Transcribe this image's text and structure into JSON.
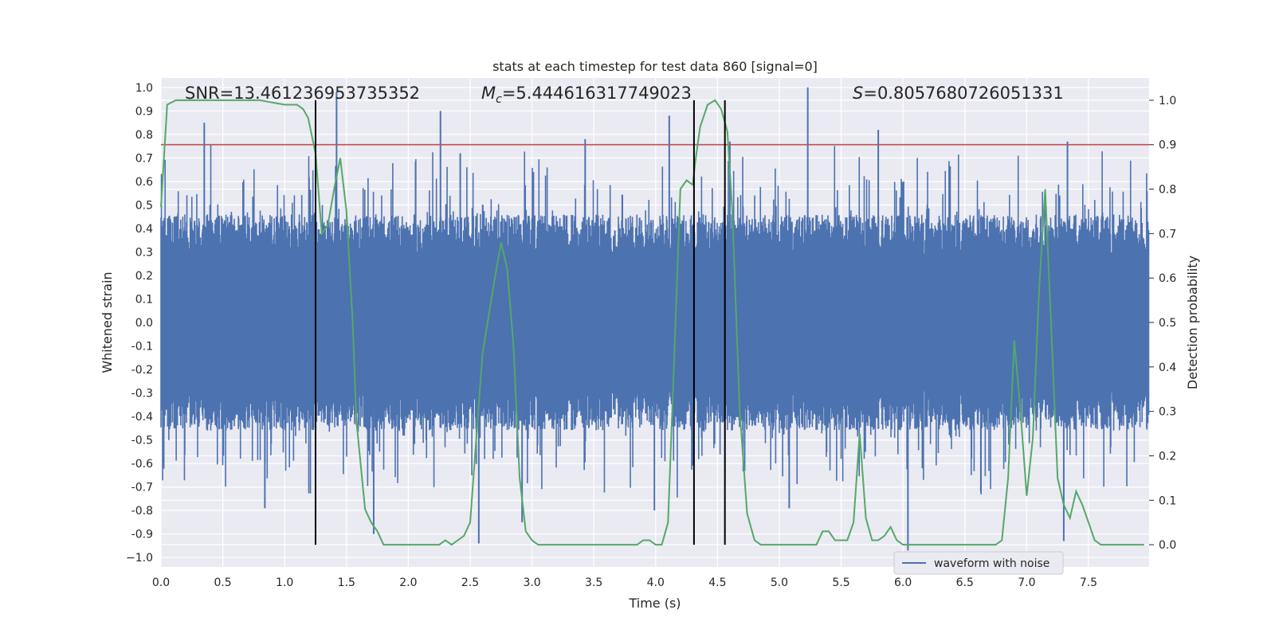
{
  "chart_data": {
    "type": "line",
    "title": "stats at each timestep for test data 860 [signal=0]",
    "xlabel": "Time (s)",
    "ylabel": "Whitened strain",
    "y2label": "Detection probability",
    "xlim": [
      0.0,
      7.99
    ],
    "ylim": [
      -1.04,
      1.04
    ],
    "y2lim": [
      -0.05,
      1.05
    ],
    "xticks": [
      "0.0",
      "0.5",
      "1.0",
      "1.5",
      "2.0",
      "2.5",
      "3.0",
      "3.5",
      "4.0",
      "4.5",
      "5.0",
      "5.5",
      "6.0",
      "6.5",
      "7.0",
      "7.5"
    ],
    "yticks": [
      "1.0",
      "0.9",
      "0.8",
      "0.7",
      "0.6",
      "0.5",
      "0.4",
      "0.3",
      "0.2",
      "0.1",
      "0.0",
      "-0.1",
      "-0.2",
      "-0.3",
      "-0.4",
      "-0.5",
      "-0.6",
      "-0.7",
      "-0.8",
      "-0.9",
      "−1.0"
    ],
    "y2ticks": [
      "1.0",
      "0.9",
      "0.8",
      "0.7",
      "0.6",
      "0.5",
      "0.4",
      "0.3",
      "0.2",
      "0.1",
      "0.0"
    ],
    "grid": true,
    "legend": {
      "position": "bottom-right",
      "entries": [
        "waveform with noise"
      ]
    },
    "annotations": {
      "snr": "SNR=13.461236953735352",
      "mc_value": "=5.444616317749023",
      "s_value": "=0.8057680726051331"
    },
    "threshold": {
      "y2": 0.9,
      "color": "#c44e52"
    },
    "vertical_lines_x": [
      1.25,
      4.31,
      4.56
    ],
    "colors": {
      "waveform": "#4c72b0",
      "probability": "#55a868",
      "background": "#eaeaf2",
      "grid": "#ffffff",
      "vlines": "#000000"
    },
    "series": [
      {
        "name": "waveform with noise",
        "style": "noise",
        "envelope_typical": 0.4,
        "peaks": [
          {
            "x": 0.35,
            "y": 0.85
          },
          {
            "x": 1.42,
            "y": 0.98
          },
          {
            "x": 2.26,
            "y": 0.9
          },
          {
            "x": 2.57,
            "y": -0.94
          },
          {
            "x": 4.11,
            "y": 0.88
          },
          {
            "x": 5.23,
            "y": 1.0
          },
          {
            "x": 5.8,
            "y": 0.82
          },
          {
            "x": 6.04,
            "y": -0.97
          },
          {
            "x": 7.33,
            "y": 0.77
          },
          {
            "x": 0.84,
            "y": -0.79
          },
          {
            "x": 1.72,
            "y": -0.9
          },
          {
            "x": 2.92,
            "y": -0.85
          },
          {
            "x": 3.99,
            "y": -0.8
          },
          {
            "x": 5.08,
            "y": -0.79
          },
          {
            "x": 7.3,
            "y": -0.93
          },
          {
            "x": 2.42,
            "y": 0.72
          },
          {
            "x": 3.43,
            "y": 0.78
          },
          {
            "x": 4.6,
            "y": 0.77
          }
        ]
      },
      {
        "name": "",
        "axis": "right",
        "x": [
          0.0,
          0.05,
          0.12,
          0.2,
          0.4,
          0.6,
          0.8,
          1.0,
          1.05,
          1.1,
          1.15,
          1.19,
          1.25,
          1.3,
          1.35,
          1.4,
          1.45,
          1.5,
          1.55,
          1.58,
          1.65,
          1.7,
          1.75,
          1.8,
          1.9,
          2.0,
          2.1,
          2.2,
          2.25,
          2.3,
          2.35,
          2.4,
          2.45,
          2.5,
          2.6,
          2.7,
          2.75,
          2.8,
          2.85,
          2.9,
          2.95,
          3.0,
          3.05,
          3.15,
          3.3,
          3.5,
          3.6,
          3.7,
          3.8,
          3.85,
          3.9,
          3.95,
          4.0,
          4.05,
          4.1,
          4.15,
          4.2,
          4.25,
          4.3,
          4.32,
          4.36,
          4.42,
          4.48,
          4.53,
          4.58,
          4.62,
          4.68,
          4.74,
          4.8,
          4.85,
          4.9,
          5.0,
          5.1,
          5.2,
          5.25,
          5.3,
          5.35,
          5.4,
          5.45,
          5.5,
          5.55,
          5.6,
          5.65,
          5.7,
          5.75,
          5.8,
          5.85,
          5.9,
          5.95,
          6.0,
          6.05,
          6.1,
          6.2,
          6.3,
          6.4,
          6.5,
          6.6,
          6.7,
          6.75,
          6.8,
          6.85,
          6.9,
          6.95,
          7.0,
          7.05,
          7.1,
          7.15,
          7.2,
          7.25,
          7.3,
          7.35,
          7.4,
          7.45,
          7.5,
          7.55,
          7.6,
          7.8,
          7.95
        ],
        "y": [
          0.76,
          0.99,
          1.0,
          1.0,
          1.0,
          1.0,
          1.0,
          0.99,
          0.99,
          0.99,
          0.98,
          0.96,
          0.88,
          0.7,
          0.72,
          0.8,
          0.87,
          0.75,
          0.5,
          0.28,
          0.08,
          0.05,
          0.03,
          0.0,
          0.0,
          0.0,
          0.0,
          0.0,
          0.0,
          0.01,
          0.0,
          0.01,
          0.02,
          0.05,
          0.43,
          0.6,
          0.68,
          0.62,
          0.45,
          0.15,
          0.03,
          0.01,
          0.0,
          0.0,
          0.0,
          0.0,
          0.0,
          0.0,
          0.0,
          0.0,
          0.01,
          0.01,
          0.0,
          0.0,
          0.05,
          0.42,
          0.8,
          0.82,
          0.81,
          0.86,
          0.94,
          0.99,
          1.0,
          0.98,
          0.93,
          0.75,
          0.3,
          0.07,
          0.01,
          0.0,
          0.0,
          0.0,
          0.0,
          0.0,
          0.0,
          0.0,
          0.03,
          0.03,
          0.01,
          0.01,
          0.01,
          0.05,
          0.25,
          0.06,
          0.01,
          0.01,
          0.02,
          0.04,
          0.01,
          0.0,
          0.0,
          0.0,
          0.0,
          0.0,
          0.0,
          0.0,
          0.0,
          0.0,
          0.0,
          0.01,
          0.15,
          0.46,
          0.3,
          0.11,
          0.24,
          0.57,
          0.8,
          0.48,
          0.15,
          0.09,
          0.06,
          0.12,
          0.09,
          0.05,
          0.01,
          0.0,
          0.0,
          0.0
        ]
      }
    ]
  }
}
